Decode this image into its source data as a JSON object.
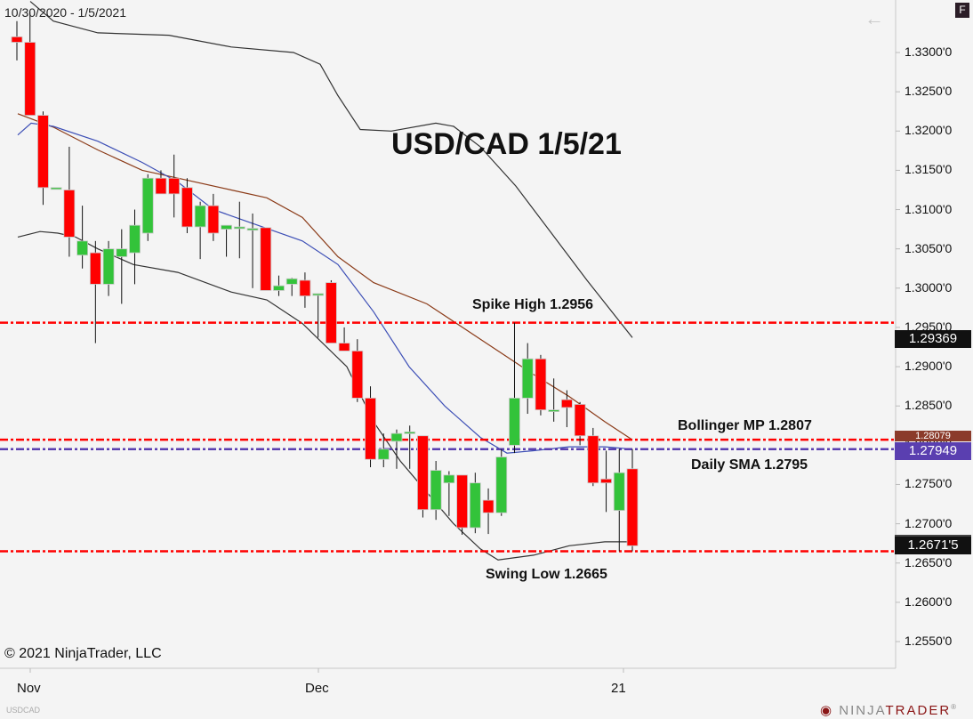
{
  "header": {
    "date_range": "10/30/2020 - 1/5/2021",
    "back_icon": "arrow-left-icon",
    "f_button_label": "F"
  },
  "footer": {
    "copyright": "© 2021 NinjaTrader, LLC",
    "symbol": "USDCAD",
    "logo_prefix": "NINJA",
    "logo_suffix": "TRADER",
    "logo_mark": "®"
  },
  "y_axis": {
    "ticks": [
      "1.3300'0",
      "1.3250'0",
      "1.3200'0",
      "1.3150'0",
      "1.3100'0",
      "1.3050'0",
      "1.3000'0",
      "1.2950'0",
      "1.2900'0",
      "1.2850'0",
      "1.2800'0",
      "1.2750'0",
      "1.2700'0",
      "1.2650'0",
      "1.2600'0",
      "1.2550'0"
    ]
  },
  "x_axis": {
    "ticks": [
      "Nov",
      "Dec",
      "21"
    ]
  },
  "price_tags": {
    "spike_high": "1.29369",
    "bollinger_mp": "1.28079",
    "daily_sma": "1.27949",
    "last_price": "1.2671'5"
  },
  "annotations": {
    "title": "USD/CAD 1/5/21",
    "spike_high": "Spike High 1.2956",
    "bollinger_mp": "Bollinger MP 1.2807",
    "daily_sma": "Daily SMA 1.2795",
    "swing_low": "Swing Low 1.2665"
  },
  "colors": {
    "up": "#33c33a",
    "down": "#ff0000",
    "level_line": "#ff0000",
    "sma_line": "#5a3fb0",
    "sma_curve": "#3d4fb6",
    "mid_band": "#8b3b18",
    "outer_band": "#333333",
    "tag_dark": "#111111",
    "tag_brown": "#8b3b2b",
    "tag_purple": "#5a3fb0"
  },
  "chart_data": {
    "type": "candlestick",
    "title": "USD/CAD 1/5/21",
    "symbol": "USDCAD",
    "date_range": "10/30/2020 - 1/5/2021",
    "xlabel": "",
    "ylabel": "",
    "ylim": [
      1.2525,
      1.336
    ],
    "grid": false,
    "x_ticks": [
      "Nov",
      "Dec",
      "21"
    ],
    "candles": [
      {
        "o": 1.332,
        "h": 1.334,
        "l": 1.329,
        "c": 1.3313
      },
      {
        "o": 1.3313,
        "h": 1.3352,
        "l": 1.322,
        "c": 1.322
      },
      {
        "o": 1.322,
        "h": 1.3225,
        "l": 1.3106,
        "c": 1.3128
      },
      {
        "o": 1.3128,
        "h": 1.3128,
        "l": 1.3128,
        "c": 1.3128
      },
      {
        "o": 1.3125,
        "h": 1.318,
        "l": 1.304,
        "c": 1.3065
      },
      {
        "o": 1.3042,
        "h": 1.3105,
        "l": 1.3025,
        "c": 1.306
      },
      {
        "o": 1.3045,
        "h": 1.306,
        "l": 1.293,
        "c": 1.3005
      },
      {
        "o": 1.3005,
        "h": 1.306,
        "l": 1.299,
        "c": 1.305
      },
      {
        "o": 1.304,
        "h": 1.3075,
        "l": 1.298,
        "c": 1.305
      },
      {
        "o": 1.3045,
        "h": 1.31,
        "l": 1.3005,
        "c": 1.308
      },
      {
        "o": 1.307,
        "h": 1.3145,
        "l": 1.306,
        "c": 1.314
      },
      {
        "o": 1.314,
        "h": 1.315,
        "l": 1.313,
        "c": 1.312
      },
      {
        "o": 1.314,
        "h": 1.317,
        "l": 1.309,
        "c": 1.312
      },
      {
        "o": 1.3128,
        "h": 1.314,
        "l": 1.307,
        "c": 1.3078
      },
      {
        "o": 1.3078,
        "h": 1.311,
        "l": 1.3037,
        "c": 1.3105
      },
      {
        "o": 1.3105,
        "h": 1.312,
        "l": 1.306,
        "c": 1.307
      },
      {
        "o": 1.3075,
        "h": 1.308,
        "l": 1.304,
        "c": 1.308
      },
      {
        "o": 1.3078,
        "h": 1.311,
        "l": 1.3038,
        "c": 1.3078
      },
      {
        "o": 1.3076,
        "h": 1.3095,
        "l": 1.3,
        "c": 1.3076
      },
      {
        "o": 1.3077,
        "h": 1.3077,
        "l": 1.3,
        "c": 1.2997
      },
      {
        "o": 1.2997,
        "h": 1.3016,
        "l": 1.299,
        "c": 1.3003
      },
      {
        "o": 1.3005,
        "h": 1.3013,
        "l": 1.299,
        "c": 1.3012
      },
      {
        "o": 1.301,
        "h": 1.302,
        "l": 1.2975,
        "c": 1.299
      },
      {
        "o": 1.2993,
        "h": 1.2993,
        "l": 1.2937,
        "c": 1.2993
      },
      {
        "o": 1.3007,
        "h": 1.301,
        "l": 1.293,
        "c": 1.293
      },
      {
        "o": 1.293,
        "h": 1.295,
        "l": 1.292,
        "c": 1.292
      },
      {
        "o": 1.292,
        "h": 1.2935,
        "l": 1.2855,
        "c": 1.286
      },
      {
        "o": 1.286,
        "h": 1.2875,
        "l": 1.2772,
        "c": 1.2782
      },
      {
        "o": 1.2782,
        "h": 1.2815,
        "l": 1.2772,
        "c": 1.2795
      },
      {
        "o": 1.2805,
        "h": 1.282,
        "l": 1.277,
        "c": 1.2815
      },
      {
        "o": 1.2817,
        "h": 1.2825,
        "l": 1.277,
        "c": 1.2817
      },
      {
        "o": 1.2812,
        "h": 1.281,
        "l": 1.2708,
        "c": 1.2718
      },
      {
        "o": 1.2718,
        "h": 1.278,
        "l": 1.2705,
        "c": 1.2768
      },
      {
        "o": 1.2752,
        "h": 1.2767,
        "l": 1.271,
        "c": 1.2762
      },
      {
        "o": 1.2762,
        "h": 1.275,
        "l": 1.2686,
        "c": 1.2695
      },
      {
        "o": 1.2695,
        "h": 1.2765,
        "l": 1.2688,
        "c": 1.2752
      },
      {
        "o": 1.273,
        "h": 1.2745,
        "l": 1.2687,
        "c": 1.2714
      },
      {
        "o": 1.2714,
        "h": 1.2795,
        "l": 1.271,
        "c": 1.2785
      },
      {
        "o": 1.28,
        "h": 1.2956,
        "l": 1.279,
        "c": 1.286
      },
      {
        "o": 1.286,
        "h": 1.293,
        "l": 1.284,
        "c": 1.291
      },
      {
        "o": 1.291,
        "h": 1.2915,
        "l": 1.2838,
        "c": 1.2845
      },
      {
        "o": 1.2845,
        "h": 1.2885,
        "l": 1.283,
        "c": 1.2845
      },
      {
        "o": 1.2858,
        "h": 1.287,
        "l": 1.2823,
        "c": 1.2848
      },
      {
        "o": 1.2852,
        "h": 1.2855,
        "l": 1.28,
        "c": 1.2812
      },
      {
        "o": 1.2812,
        "h": 1.2822,
        "l": 1.2748,
        "c": 1.2752
      },
      {
        "o": 1.2757,
        "h": 1.2793,
        "l": 1.2715,
        "c": 1.2752
      },
      {
        "o": 1.2717,
        "h": 1.2795,
        "l": 1.2665,
        "c": 1.2765
      },
      {
        "o": 1.277,
        "h": 1.2795,
        "l": 1.2665,
        "c": 1.2672
      }
    ],
    "levels": [
      {
        "name": "Spike High",
        "value": 1.2956,
        "color": "#ff0000",
        "style": "dash-dot"
      },
      {
        "name": "Bollinger MP",
        "value": 1.2807,
        "color": "#ff0000",
        "style": "dash-dot"
      },
      {
        "name": "Daily SMA",
        "value": 1.2795,
        "color": "#5a3fb0",
        "style": "dash-dot"
      },
      {
        "name": "Swing Low",
        "value": 1.2665,
        "color": "#ff0000",
        "style": "dash-dot"
      }
    ],
    "series": [
      {
        "name": "Bollinger Upper",
        "color": "#333333",
        "points": [
          [
            34,
            1.3365
          ],
          [
            60,
            1.334
          ],
          [
            110,
            1.3325
          ],
          [
            190,
            1.3322
          ],
          [
            260,
            1.3307
          ],
          [
            330,
            1.33
          ],
          [
            360,
            1.3285
          ],
          [
            380,
            1.3245
          ],
          [
            405,
            1.3202
          ],
          [
            440,
            1.32
          ],
          [
            490,
            1.321
          ],
          [
            510,
            1.3206
          ],
          [
            540,
            1.318
          ],
          [
            580,
            1.313
          ],
          [
            620,
            1.307
          ],
          [
            660,
            1.301
          ],
          [
            711,
            1.2937
          ]
        ]
      },
      {
        "name": "Bollinger Middle",
        "color": "#8b3b18",
        "points": [
          [
            20,
            1.3222
          ],
          [
            60,
            1.3205
          ],
          [
            110,
            1.3176
          ],
          [
            160,
            1.315
          ],
          [
            200,
            1.314
          ],
          [
            260,
            1.3125
          ],
          [
            300,
            1.3115
          ],
          [
            340,
            1.309
          ],
          [
            380,
            1.304
          ],
          [
            420,
            1.3007
          ],
          [
            480,
            1.298
          ],
          [
            520,
            1.295
          ],
          [
            560,
            1.292
          ],
          [
            600,
            1.289
          ],
          [
            640,
            1.2862
          ],
          [
            680,
            1.283
          ],
          [
            711,
            1.2807
          ]
        ]
      },
      {
        "name": "Daily SMA",
        "color": "#3d4fb6",
        "points": [
          [
            20,
            1.3195
          ],
          [
            35,
            1.321
          ],
          [
            60,
            1.3206
          ],
          [
            110,
            1.3187
          ],
          [
            160,
            1.316
          ],
          [
            200,
            1.3135
          ],
          [
            240,
            1.31
          ],
          [
            290,
            1.308
          ],
          [
            340,
            1.306
          ],
          [
            380,
            1.303
          ],
          [
            420,
            1.297
          ],
          [
            460,
            1.29
          ],
          [
            500,
            1.285
          ],
          [
            540,
            1.281
          ],
          [
            570,
            1.279
          ],
          [
            600,
            1.2793
          ],
          [
            640,
            1.2798
          ],
          [
            680,
            1.2798
          ],
          [
            711,
            1.2795
          ]
        ]
      },
      {
        "name": "Bollinger Lower",
        "color": "#333333",
        "points": [
          [
            20,
            1.3065
          ],
          [
            45,
            1.3072
          ],
          [
            65,
            1.307
          ],
          [
            85,
            1.3065
          ],
          [
            110,
            1.305
          ],
          [
            150,
            1.303
          ],
          [
            200,
            1.302
          ],
          [
            260,
            1.2995
          ],
          [
            300,
            1.2985
          ],
          [
            340,
            1.2955
          ],
          [
            390,
            1.29
          ],
          [
            420,
            1.283
          ],
          [
            450,
            1.278
          ],
          [
            480,
            1.274
          ],
          [
            510,
            1.27
          ],
          [
            540,
            1.2668
          ],
          [
            560,
            1.2654
          ],
          [
            600,
            1.266
          ],
          [
            640,
            1.2672
          ],
          [
            680,
            1.2677
          ],
          [
            711,
            1.2677
          ]
        ]
      }
    ],
    "last_price": 1.26715,
    "annotations": [
      "USD/CAD 1/5/21",
      "Spike High 1.2956",
      "Bollinger MP 1.2807",
      "Daily SMA 1.2795",
      "Swing Low 1.2665"
    ]
  }
}
